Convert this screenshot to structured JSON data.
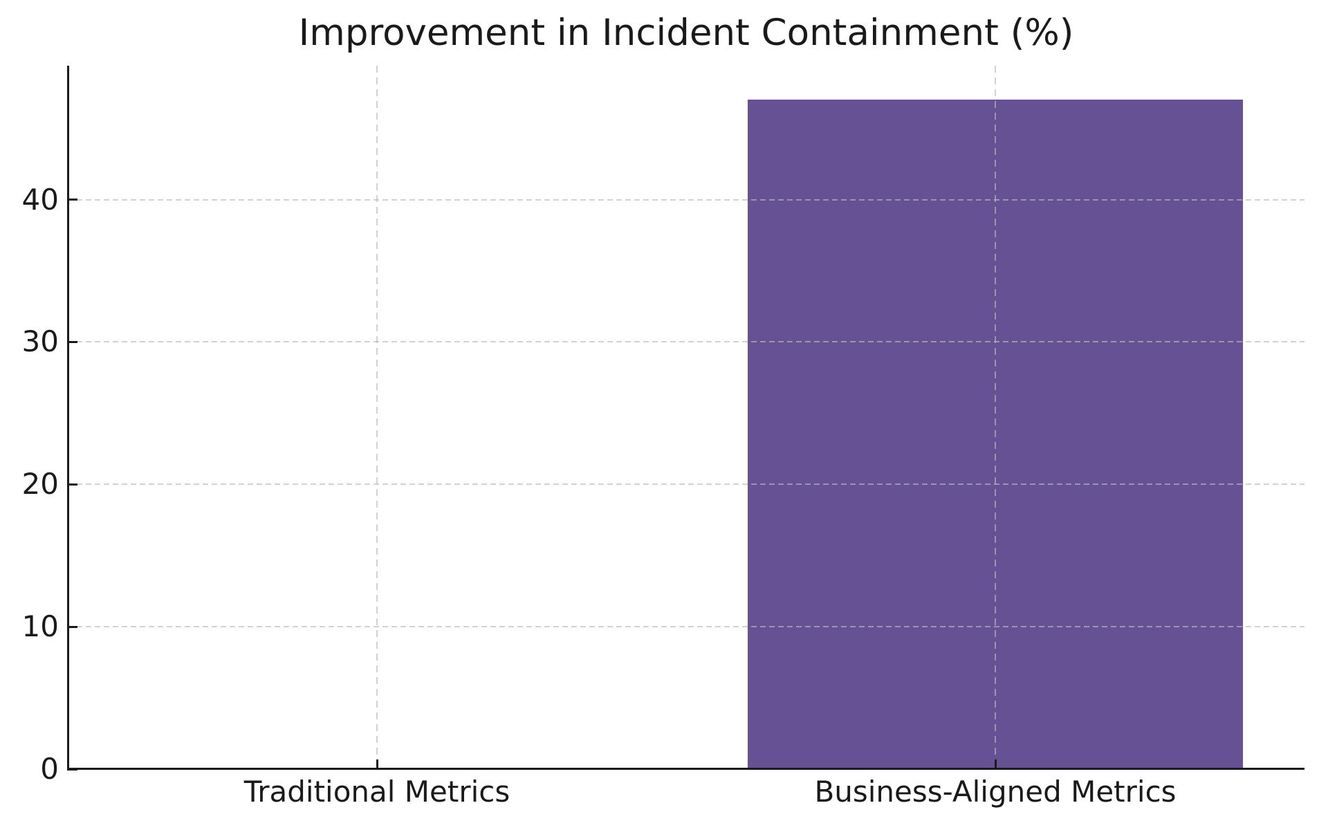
{
  "chart_data": {
    "type": "bar",
    "title": "Improvement in Incident Containment (%)",
    "categories": [
      "Traditional Metrics",
      "Business-Aligned Metrics"
    ],
    "values": [
      0,
      47
    ],
    "xlabel": "",
    "ylabel": "",
    "ylim": [
      0,
      49.4
    ],
    "yticks": [
      0,
      10,
      20,
      30,
      40
    ],
    "bar_width_fraction": 0.8,
    "grid": "on, dashed, drawn above bars, horizontal at yticks and vertical at category centers",
    "legend": "none",
    "colors": {
      "bar": "#655194",
      "grid": "#bababa",
      "grid_alpha": 0.65,
      "axis": "#1a1a1a",
      "text": "#1a1a1a",
      "background": "#ffffff"
    }
  }
}
